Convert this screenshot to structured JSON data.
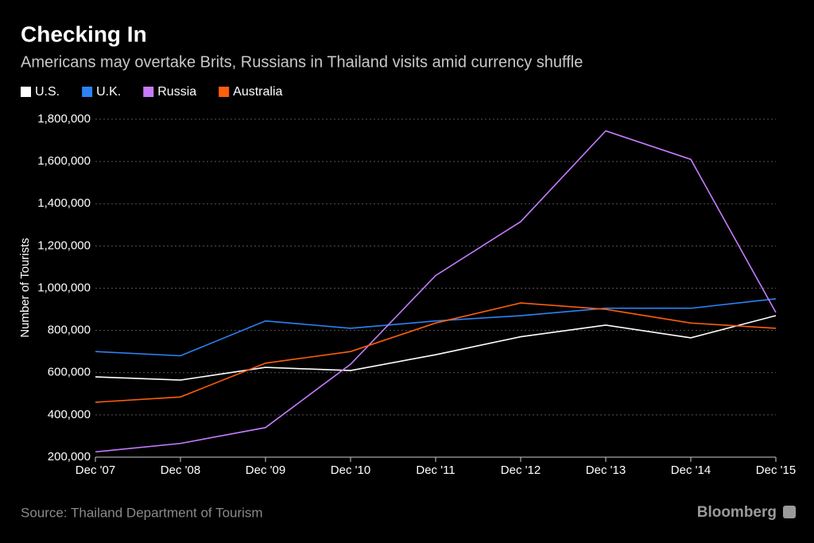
{
  "chart_data": {
    "type": "line",
    "title": "Checking In",
    "subtitle": "Americans may overtake Brits, Russians in Thailand visits amid currency shuffle",
    "y_label": "Number of Tourists",
    "source": "Source: Thailand Department of Tourism",
    "brand": "Bloomberg",
    "categories": [
      "Dec '07",
      "Dec '08",
      "Dec '09",
      "Dec '10",
      "Dec '11",
      "Dec '12",
      "Dec '13",
      "Dec '14",
      "Dec '15"
    ],
    "series": [
      {
        "name": "U.S.",
        "color": "#ffffff",
        "values": [
          580000,
          565000,
          625000,
          610000,
          685000,
          770000,
          825000,
          765000,
          870000
        ]
      },
      {
        "name": "U.K.",
        "color": "#2b83f6",
        "values": [
          700000,
          680000,
          845000,
          810000,
          845000,
          870000,
          905000,
          905000,
          950000
        ]
      },
      {
        "name": "Russia",
        "color": "#c67cff",
        "values": [
          225000,
          265000,
          340000,
          640000,
          1060000,
          1315000,
          1745000,
          1610000,
          885000
        ]
      },
      {
        "name": "Australia",
        "color": "#ff5e0e",
        "values": [
          460000,
          485000,
          645000,
          700000,
          835000,
          930000,
          900000,
          835000,
          810000
        ]
      }
    ],
    "ylim": [
      200000,
      1800000
    ],
    "yticks": [
      {
        "value": 200000,
        "label": "200,000"
      },
      {
        "value": 400000,
        "label": "400,000"
      },
      {
        "value": 600000,
        "label": "600,000"
      },
      {
        "value": 800000,
        "label": "800,000"
      },
      {
        "value": 1000000,
        "label": "1,000,000"
      },
      {
        "value": 1200000,
        "label": "1,200,000"
      },
      {
        "value": 1400000,
        "label": "1,400,000"
      },
      {
        "value": 1600000,
        "label": "1,600,000"
      },
      {
        "value": 1800000,
        "label": "1,800,000"
      }
    ],
    "grid": true,
    "legend": "top-left"
  }
}
